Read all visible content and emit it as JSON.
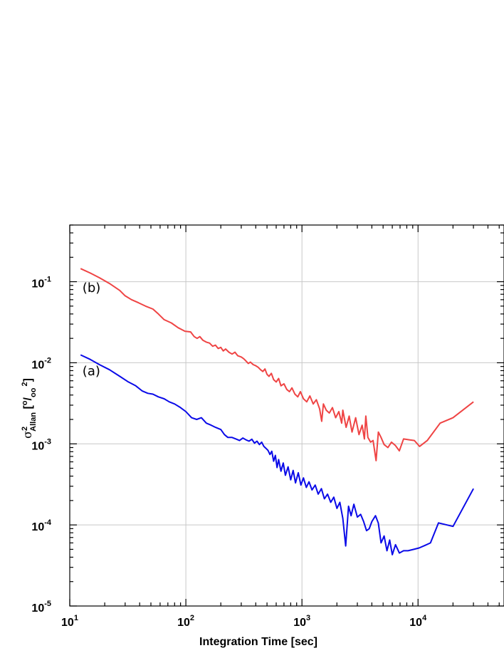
{
  "chart_data": {
    "type": "line",
    "x_scale": "log",
    "y_scale": "log",
    "xlim": [
      10,
      55000
    ],
    "ylim": [
      1e-05,
      0.5
    ],
    "grid": true,
    "xlabel": "Integration Time [sec]",
    "ylabel": {
      "sigma": "σ",
      "sup": "2",
      "sub": "Allan",
      "unit_open": " [",
      "unit_sup1": "o",
      "unit_slash": "/",
      "unit_sub": "oo",
      "unit_sup2": "2",
      "unit_close": "]"
    },
    "x_ticks": [
      {
        "base": "10",
        "exp": "1",
        "value": 10
      },
      {
        "base": "10",
        "exp": "2",
        "value": 100
      },
      {
        "base": "10",
        "exp": "3",
        "value": 1000
      },
      {
        "base": "10",
        "exp": "4",
        "value": 10000
      }
    ],
    "y_ticks": [
      {
        "base": "10",
        "exp": "-5",
        "value": 1e-05
      },
      {
        "base": "10",
        "exp": "-4",
        "value": 0.0001
      },
      {
        "base": "10",
        "exp": "-3",
        "value": 0.001
      },
      {
        "base": "10",
        "exp": "-2",
        "value": 0.01
      },
      {
        "base": "10",
        "exp": "-1",
        "value": 0.1
      }
    ],
    "annotations": [
      {
        "text": "(a)",
        "x": 12.5,
        "y": 0.007
      },
      {
        "text": "(b)",
        "x": 12.5,
        "y": 0.075
      }
    ],
    "series": [
      {
        "color": "#ef4444",
        "points": [
          [
            12.4,
            0.145
          ],
          [
            15,
            0.128
          ],
          [
            18,
            0.112
          ],
          [
            22,
            0.095
          ],
          [
            27,
            0.078
          ],
          [
            30,
            0.067
          ],
          [
            34,
            0.06
          ],
          [
            39,
            0.055
          ],
          [
            45,
            0.05
          ],
          [
            52,
            0.046
          ],
          [
            58,
            0.04
          ],
          [
            65,
            0.034
          ],
          [
            75,
            0.031
          ],
          [
            86,
            0.027
          ],
          [
            98,
            0.0245
          ],
          [
            110,
            0.024
          ],
          [
            118,
            0.021
          ],
          [
            125,
            0.02
          ],
          [
            132,
            0.021
          ],
          [
            140,
            0.019
          ],
          [
            150,
            0.018
          ],
          [
            160,
            0.0175
          ],
          [
            170,
            0.016
          ],
          [
            180,
            0.0165
          ],
          [
            190,
            0.015
          ],
          [
            200,
            0.0155
          ],
          [
            210,
            0.014
          ],
          [
            220,
            0.0148
          ],
          [
            235,
            0.0135
          ],
          [
            250,
            0.0128
          ],
          [
            265,
            0.0135
          ],
          [
            280,
            0.0122
          ],
          [
            300,
            0.0118
          ],
          [
            315,
            0.0112
          ],
          [
            330,
            0.0105
          ],
          [
            345,
            0.0098
          ],
          [
            360,
            0.0102
          ],
          [
            380,
            0.0095
          ],
          [
            400,
            0.0092
          ],
          [
            420,
            0.0088
          ],
          [
            440,
            0.0082
          ],
          [
            460,
            0.0078
          ],
          [
            480,
            0.0084
          ],
          [
            500,
            0.0072
          ],
          [
            520,
            0.0068
          ],
          [
            545,
            0.0074
          ],
          [
            570,
            0.0062
          ],
          [
            600,
            0.0058
          ],
          [
            630,
            0.0064
          ],
          [
            660,
            0.0052
          ],
          [
            700,
            0.0055
          ],
          [
            740,
            0.0047
          ],
          [
            780,
            0.0044
          ],
          [
            820,
            0.0049
          ],
          [
            870,
            0.0041
          ],
          [
            920,
            0.0038
          ],
          [
            970,
            0.0044
          ],
          [
            1030,
            0.0036
          ],
          [
            1100,
            0.0033
          ],
          [
            1170,
            0.0039
          ],
          [
            1250,
            0.0031
          ],
          [
            1330,
            0.0035
          ],
          [
            1420,
            0.0027
          ],
          [
            1480,
            0.0019
          ],
          [
            1530,
            0.0031
          ],
          [
            1620,
            0.0026
          ],
          [
            1720,
            0.0024
          ],
          [
            1830,
            0.0028
          ],
          [
            1950,
            0.0021
          ],
          [
            2080,
            0.0025
          ],
          [
            2200,
            0.0018
          ],
          [
            2250,
            0.0026
          ],
          [
            2400,
            0.0016
          ],
          [
            2550,
            0.0022
          ],
          [
            2700,
            0.0014
          ],
          [
            2900,
            0.0021
          ],
          [
            3100,
            0.0013
          ],
          [
            3300,
            0.0017
          ],
          [
            3450,
            0.00115
          ],
          [
            3550,
            0.0022
          ],
          [
            3700,
            0.0012
          ],
          [
            3900,
            0.00105
          ],
          [
            4100,
            0.0011
          ],
          [
            4350,
            0.00062
          ],
          [
            4550,
            0.0014
          ],
          [
            4800,
            0.0012
          ],
          [
            5100,
            0.00098
          ],
          [
            5500,
            0.0009
          ],
          [
            5900,
            0.00105
          ],
          [
            6400,
            0.00095
          ],
          [
            6900,
            0.00082
          ],
          [
            7500,
            0.00115
          ],
          [
            8500,
            0.00112
          ],
          [
            9300,
            0.0011
          ],
          [
            10300,
            0.00093
          ],
          [
            12000,
            0.0011
          ],
          [
            15500,
            0.0018
          ],
          [
            20000,
            0.0021
          ],
          [
            30000,
            0.0033
          ]
        ]
      },
      {
        "color": "#0a0ae8",
        "points": [
          [
            12.4,
            0.0125
          ],
          [
            15,
            0.011
          ],
          [
            18,
            0.0095
          ],
          [
            22,
            0.0082
          ],
          [
            27,
            0.0068
          ],
          [
            32,
            0.0058
          ],
          [
            37,
            0.0052
          ],
          [
            42,
            0.0045
          ],
          [
            47,
            0.0042
          ],
          [
            52,
            0.0041
          ],
          [
            58,
            0.0038
          ],
          [
            65,
            0.0036
          ],
          [
            72,
            0.0033
          ],
          [
            80,
            0.0031
          ],
          [
            90,
            0.0028
          ],
          [
            100,
            0.0025
          ],
          [
            112,
            0.0021
          ],
          [
            124,
            0.002
          ],
          [
            136,
            0.0021
          ],
          [
            150,
            0.0018
          ],
          [
            165,
            0.0017
          ],
          [
            180,
            0.0016
          ],
          [
            200,
            0.0015
          ],
          [
            215,
            0.0013
          ],
          [
            230,
            0.0012
          ],
          [
            250,
            0.0012
          ],
          [
            270,
            0.00115
          ],
          [
            290,
            0.0011
          ],
          [
            310,
            0.00118
          ],
          [
            330,
            0.00112
          ],
          [
            350,
            0.00108
          ],
          [
            370,
            0.00114
          ],
          [
            390,
            0.00102
          ],
          [
            410,
            0.00108
          ],
          [
            430,
            0.00098
          ],
          [
            450,
            0.00105
          ],
          [
            470,
            0.00093
          ],
          [
            490,
            0.00088
          ],
          [
            510,
            0.00083
          ],
          [
            530,
            0.00074
          ],
          [
            550,
            0.00081
          ],
          [
            570,
            0.00061
          ],
          [
            590,
            0.00072
          ],
          [
            610,
            0.00051
          ],
          [
            630,
            0.00064
          ],
          [
            660,
            0.00046
          ],
          [
            690,
            0.00058
          ],
          [
            720,
            0.00041
          ],
          [
            760,
            0.00052
          ],
          [
            800,
            0.00036
          ],
          [
            840,
            0.00047
          ],
          [
            880,
            0.00033
          ],
          [
            930,
            0.00044
          ],
          [
            980,
            0.00031
          ],
          [
            1030,
            0.00038
          ],
          [
            1090,
            0.00029
          ],
          [
            1150,
            0.00034
          ],
          [
            1220,
            0.00027
          ],
          [
            1300,
            0.00031
          ],
          [
            1380,
            0.00024
          ],
          [
            1470,
            0.00028
          ],
          [
            1560,
            0.00021
          ],
          [
            1660,
            0.00024
          ],
          [
            1770,
            0.00019
          ],
          [
            1880,
            0.00022
          ],
          [
            2000,
            0.00016
          ],
          [
            2120,
            0.00019
          ],
          [
            2250,
            0.00012
          ],
          [
            2380,
            5.5e-05
          ],
          [
            2520,
            0.00017
          ],
          [
            2650,
            0.00013
          ],
          [
            2800,
            0.00018
          ],
          [
            3000,
            0.000125
          ],
          [
            3200,
            0.000135
          ],
          [
            3400,
            0.00011
          ],
          [
            3600,
            8.5e-05
          ],
          [
            3800,
            9e-05
          ],
          [
            4000,
            0.00011
          ],
          [
            4300,
            0.00013
          ],
          [
            4550,
            0.000105
          ],
          [
            4800,
            6e-05
          ],
          [
            5100,
            7.3e-05
          ],
          [
            5400,
            4.8e-05
          ],
          [
            5700,
            6.5e-05
          ],
          [
            6000,
            4.3e-05
          ],
          [
            6400,
            5.7e-05
          ],
          [
            6900,
            4.5e-05
          ],
          [
            7500,
            4.8e-05
          ],
          [
            8200,
            4.8e-05
          ],
          [
            9200,
            5e-05
          ],
          [
            10200,
            5.2e-05
          ],
          [
            11500,
            5.6e-05
          ],
          [
            12800,
            6e-05
          ],
          [
            15000,
            0.000106
          ],
          [
            20000,
            9.6e-05
          ],
          [
            30000,
            0.00028
          ]
        ]
      }
    ]
  }
}
